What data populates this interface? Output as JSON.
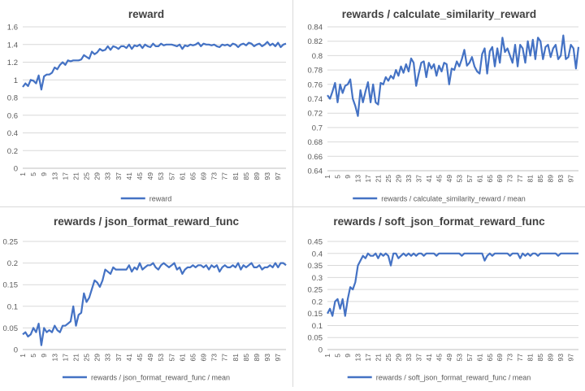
{
  "chart_data": [
    {
      "type": "line",
      "title": "reward",
      "xlabel": "",
      "ylabel": "",
      "legend": "bottom",
      "ylim": [
        0,
        1.6
      ],
      "yticks": [
        "0",
        "0.2",
        "0.4",
        "0.6",
        "0.8",
        "1",
        "1.2",
        "1.4",
        "1.6"
      ],
      "x": [
        1,
        2,
        3,
        4,
        5,
        6,
        7,
        8,
        9,
        10,
        11,
        12,
        13,
        14,
        15,
        16,
        17,
        18,
        19,
        20,
        21,
        22,
        23,
        24,
        25,
        26,
        27,
        28,
        29,
        30,
        31,
        32,
        33,
        34,
        35,
        36,
        37,
        38,
        39,
        40,
        41,
        42,
        43,
        44,
        45,
        46,
        47,
        48,
        49,
        50,
        51,
        52,
        53,
        54,
        55,
        56,
        57,
        58,
        59,
        60,
        61,
        62,
        63,
        64,
        65,
        66,
        67,
        68,
        69,
        70,
        71,
        72,
        73,
        74,
        75,
        76,
        77,
        78,
        79,
        80,
        81,
        82,
        83,
        84,
        85,
        86,
        87,
        88,
        89,
        90,
        91,
        92,
        93,
        94,
        95,
        96,
        97,
        98,
        99,
        100
      ],
      "xticks": [
        "1",
        "5",
        "9",
        "13",
        "17",
        "21",
        "25",
        "29",
        "33",
        "37",
        "41",
        "45",
        "49",
        "53",
        "57",
        "61",
        "65",
        "69",
        "73",
        "77",
        "81",
        "85",
        "89",
        "93",
        "97"
      ],
      "series": [
        {
          "name": "reward",
          "color": "#4472c4",
          "values": [
            0.92,
            0.96,
            0.93,
            1.0,
            0.99,
            0.96,
            1.05,
            0.89,
            1.04,
            1.06,
            1.06,
            1.08,
            1.14,
            1.12,
            1.17,
            1.2,
            1.17,
            1.22,
            1.21,
            1.22,
            1.22,
            1.22,
            1.23,
            1.28,
            1.26,
            1.24,
            1.32,
            1.29,
            1.31,
            1.35,
            1.33,
            1.34,
            1.38,
            1.34,
            1.38,
            1.37,
            1.35,
            1.38,
            1.38,
            1.36,
            1.4,
            1.35,
            1.39,
            1.38,
            1.4,
            1.36,
            1.4,
            1.38,
            1.37,
            1.41,
            1.38,
            1.38,
            1.41,
            1.39,
            1.4,
            1.4,
            1.4,
            1.39,
            1.38,
            1.4,
            1.35,
            1.39,
            1.38,
            1.4,
            1.39,
            1.4,
            1.42,
            1.38,
            1.41,
            1.4,
            1.4,
            1.39,
            1.4,
            1.38,
            1.37,
            1.4,
            1.39,
            1.4,
            1.38,
            1.41,
            1.4,
            1.37,
            1.4,
            1.41,
            1.39,
            1.42,
            1.41,
            1.38,
            1.4,
            1.41,
            1.38,
            1.4,
            1.43,
            1.39,
            1.41,
            1.38,
            1.42,
            1.37,
            1.4,
            1.41
          ]
        }
      ]
    },
    {
      "type": "line",
      "title": "rewards / calculate_similarity_reward",
      "xlabel": "",
      "ylabel": "",
      "legend": "bottom",
      "ylim": [
        0.64,
        0.84
      ],
      "yticks": [
        "0.64",
        "0.66",
        "0.68",
        "0.7",
        "0.72",
        "0.74",
        "0.76",
        "0.78",
        "0.8",
        "0.82",
        "0.84"
      ],
      "x": [
        1,
        2,
        3,
        4,
        5,
        6,
        7,
        8,
        9,
        10,
        11,
        12,
        13,
        14,
        15,
        16,
        17,
        18,
        19,
        20,
        21,
        22,
        23,
        24,
        25,
        26,
        27,
        28,
        29,
        30,
        31,
        32,
        33,
        34,
        35,
        36,
        37,
        38,
        39,
        40,
        41,
        42,
        43,
        44,
        45,
        46,
        47,
        48,
        49,
        50,
        51,
        52,
        53,
        54,
        55,
        56,
        57,
        58,
        59,
        60,
        61,
        62,
        63,
        64,
        65,
        66,
        67,
        68,
        69,
        70,
        71,
        72,
        73,
        74,
        75,
        76,
        77,
        78,
        79,
        80,
        81,
        82,
        83,
        84,
        85,
        86,
        87,
        88,
        89,
        90,
        91,
        92,
        93,
        94,
        95,
        96,
        97,
        98,
        99,
        100
      ],
      "xticks": [
        "1",
        "5",
        "9",
        "13",
        "17",
        "21",
        "25",
        "29",
        "33",
        "37",
        "41",
        "45",
        "49",
        "53",
        "57",
        "61",
        "65",
        "69",
        "73",
        "77",
        "81",
        "85",
        "89",
        "93",
        "97"
      ],
      "series": [
        {
          "name": "rewards / calculate_similarity_reward / mean",
          "color": "#4472c4",
          "values": [
            0.745,
            0.74,
            0.75,
            0.762,
            0.735,
            0.76,
            0.748,
            0.758,
            0.76,
            0.767,
            0.74,
            0.73,
            0.716,
            0.752,
            0.735,
            0.75,
            0.763,
            0.735,
            0.76,
            0.735,
            0.732,
            0.762,
            0.76,
            0.77,
            0.765,
            0.772,
            0.768,
            0.78,
            0.772,
            0.785,
            0.776,
            0.788,
            0.778,
            0.796,
            0.79,
            0.758,
            0.775,
            0.79,
            0.792,
            0.77,
            0.79,
            0.782,
            0.788,
            0.772,
            0.786,
            0.778,
            0.79,
            0.788,
            0.76,
            0.782,
            0.78,
            0.792,
            0.785,
            0.795,
            0.808,
            0.786,
            0.79,
            0.798,
            0.785,
            0.778,
            0.775,
            0.802,
            0.81,
            0.775,
            0.806,
            0.812,
            0.785,
            0.81,
            0.79,
            0.825,
            0.805,
            0.81,
            0.8,
            0.79,
            0.815,
            0.785,
            0.815,
            0.81,
            0.79,
            0.82,
            0.8,
            0.822,
            0.795,
            0.825,
            0.82,
            0.795,
            0.812,
            0.815,
            0.798,
            0.81,
            0.815,
            0.795,
            0.8,
            0.828,
            0.795,
            0.798,
            0.815,
            0.81,
            0.782,
            0.812
          ]
        }
      ]
    },
    {
      "type": "line",
      "title": "rewards / json_format_reward_func",
      "xlabel": "",
      "ylabel": "",
      "legend": "bottom",
      "ylim": [
        0,
        0.25
      ],
      "yticks": [
        "0",
        "0.05",
        "0.1",
        "0.15",
        "0.2",
        "0.25"
      ],
      "x": [
        1,
        2,
        3,
        4,
        5,
        6,
        7,
        8,
        9,
        10,
        11,
        12,
        13,
        14,
        15,
        16,
        17,
        18,
        19,
        20,
        21,
        22,
        23,
        24,
        25,
        26,
        27,
        28,
        29,
        30,
        31,
        32,
        33,
        34,
        35,
        36,
        37,
        38,
        39,
        40,
        41,
        42,
        43,
        44,
        45,
        46,
        47,
        48,
        49,
        50,
        51,
        52,
        53,
        54,
        55,
        56,
        57,
        58,
        59,
        60,
        61,
        62,
        63,
        64,
        65,
        66,
        67,
        68,
        69,
        70,
        71,
        72,
        73,
        74,
        75,
        76,
        77,
        78,
        79,
        80,
        81,
        82,
        83,
        84,
        85,
        86,
        87,
        88,
        89,
        90,
        91,
        92,
        93,
        94,
        95,
        96,
        97,
        98,
        99,
        100
      ],
      "xticks": [
        "1",
        "5",
        "9",
        "13",
        "17",
        "21",
        "25",
        "29",
        "33",
        "37",
        "41",
        "45",
        "49",
        "53",
        "57",
        "61",
        "65",
        "69",
        "73",
        "77",
        "81",
        "85",
        "89",
        "93",
        "97"
      ],
      "series": [
        {
          "name": "rewards / json_format_reward_func / mean",
          "color": "#4472c4",
          "values": [
            0.035,
            0.04,
            0.03,
            0.035,
            0.05,
            0.04,
            0.06,
            0.01,
            0.05,
            0.04,
            0.045,
            0.04,
            0.055,
            0.045,
            0.04,
            0.055,
            0.055,
            0.06,
            0.065,
            0.1,
            0.055,
            0.08,
            0.085,
            0.13,
            0.11,
            0.12,
            0.14,
            0.16,
            0.155,
            0.145,
            0.16,
            0.185,
            0.18,
            0.175,
            0.19,
            0.185,
            0.185,
            0.185,
            0.185,
            0.185,
            0.195,
            0.18,
            0.19,
            0.185,
            0.2,
            0.185,
            0.19,
            0.195,
            0.195,
            0.2,
            0.19,
            0.185,
            0.195,
            0.2,
            0.195,
            0.19,
            0.195,
            0.2,
            0.185,
            0.19,
            0.175,
            0.185,
            0.19,
            0.19,
            0.195,
            0.19,
            0.195,
            0.195,
            0.19,
            0.195,
            0.185,
            0.195,
            0.19,
            0.195,
            0.18,
            0.19,
            0.195,
            0.19,
            0.19,
            0.195,
            0.19,
            0.2,
            0.185,
            0.195,
            0.19,
            0.195,
            0.2,
            0.19,
            0.19,
            0.195,
            0.185,
            0.19,
            0.19,
            0.195,
            0.19,
            0.2,
            0.19,
            0.2,
            0.2,
            0.195
          ]
        }
      ]
    },
    {
      "type": "line",
      "title": "rewards / soft_json_format_reward_func",
      "xlabel": "",
      "ylabel": "",
      "legend": "bottom",
      "ylim": [
        0,
        0.45
      ],
      "yticks": [
        "0",
        "0.05",
        "0.1",
        "0.15",
        "0.2",
        "0.25",
        "0.3",
        "0.35",
        "0.4",
        "0.45"
      ],
      "x": [
        1,
        2,
        3,
        4,
        5,
        6,
        7,
        8,
        9,
        10,
        11,
        12,
        13,
        14,
        15,
        16,
        17,
        18,
        19,
        20,
        21,
        22,
        23,
        24,
        25,
        26,
        27,
        28,
        29,
        30,
        31,
        32,
        33,
        34,
        35,
        36,
        37,
        38,
        39,
        40,
        41,
        42,
        43,
        44,
        45,
        46,
        47,
        48,
        49,
        50,
        51,
        52,
        53,
        54,
        55,
        56,
        57,
        58,
        59,
        60,
        61,
        62,
        63,
        64,
        65,
        66,
        67,
        68,
        69,
        70,
        71,
        72,
        73,
        74,
        75,
        76,
        77,
        78,
        79,
        80,
        81,
        82,
        83,
        84,
        85,
        86,
        87,
        88,
        89,
        90,
        91,
        92,
        93,
        94,
        95,
        96,
        97,
        98,
        99,
        100
      ],
      "xticks": [
        "1",
        "5",
        "9",
        "13",
        "17",
        "21",
        "25",
        "29",
        "33",
        "37",
        "41",
        "45",
        "49",
        "53",
        "57",
        "61",
        "65",
        "69",
        "73",
        "77",
        "81",
        "85",
        "89",
        "93",
        "97"
      ],
      "series": [
        {
          "name": "rewards / soft_json_format_reward_func / mean",
          "color": "#4472c4",
          "values": [
            0.15,
            0.17,
            0.14,
            0.2,
            0.21,
            0.17,
            0.21,
            0.14,
            0.21,
            0.26,
            0.25,
            0.28,
            0.35,
            0.37,
            0.39,
            0.38,
            0.4,
            0.39,
            0.39,
            0.4,
            0.38,
            0.4,
            0.39,
            0.4,
            0.39,
            0.35,
            0.4,
            0.4,
            0.38,
            0.39,
            0.4,
            0.39,
            0.4,
            0.39,
            0.4,
            0.39,
            0.4,
            0.4,
            0.39,
            0.4,
            0.4,
            0.4,
            0.4,
            0.39,
            0.4,
            0.4,
            0.4,
            0.4,
            0.4,
            0.4,
            0.4,
            0.4,
            0.4,
            0.39,
            0.4,
            0.4,
            0.4,
            0.4,
            0.4,
            0.4,
            0.4,
            0.4,
            0.37,
            0.39,
            0.4,
            0.39,
            0.4,
            0.4,
            0.4,
            0.4,
            0.4,
            0.4,
            0.39,
            0.4,
            0.4,
            0.4,
            0.38,
            0.4,
            0.39,
            0.4,
            0.39,
            0.4,
            0.4,
            0.39,
            0.4,
            0.4,
            0.4,
            0.4,
            0.4,
            0.4,
            0.4,
            0.39,
            0.4,
            0.4,
            0.4,
            0.4,
            0.4,
            0.4,
            0.4,
            0.4
          ]
        }
      ]
    }
  ]
}
